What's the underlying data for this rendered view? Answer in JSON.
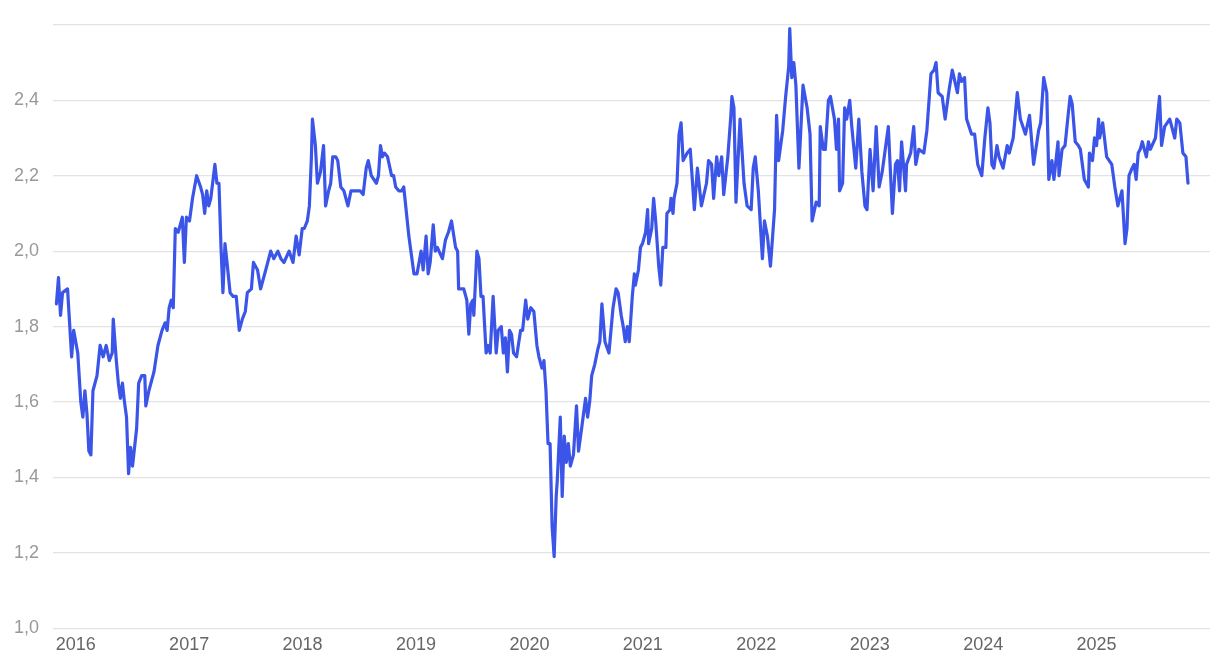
{
  "chart_data": {
    "type": "line",
    "color": "#3b55e8",
    "line_style": "solid",
    "grid": "y",
    "xlim": [
      2015.8,
      2026
    ],
    "xticks": [
      2016,
      2017,
      2018,
      2019,
      2020,
      2021,
      2022,
      2023,
      2024,
      2025
    ],
    "ylim": [
      1.0,
      2.6
    ],
    "yticks": [
      {
        "value": 1.0,
        "label": "1,0"
      },
      {
        "value": 1.2,
        "label": "1,2"
      },
      {
        "value": 1.4,
        "label": "1,4"
      },
      {
        "value": 1.6,
        "label": "1,6"
      },
      {
        "value": 1.8,
        "label": "1,8"
      },
      {
        "value": 2.0,
        "label": "2,0"
      },
      {
        "value": 2.2,
        "label": "2,2"
      },
      {
        "value": 2.4,
        "label": "2,4"
      },
      {
        "value": 2.6,
        "label": null
      }
    ],
    "x": [
      2015.83,
      2015.848,
      2015.866,
      2015.884,
      2015.928,
      2015.964,
      2015.982,
      2016.018,
      2016.045,
      2016.063,
      2016.081,
      2016.099,
      2016.116,
      2016.134,
      2016.152,
      2016.188,
      2016.215,
      2016.242,
      2016.269,
      2016.296,
      2016.322,
      2016.331,
      2016.358,
      2016.376,
      2016.394,
      2016.412,
      2016.43,
      2016.448,
      2016.466,
      2016.484,
      2016.501,
      2016.537,
      2016.555,
      2016.582,
      2016.609,
      2016.618,
      2016.645,
      2016.69,
      2016.725,
      2016.761,
      2016.788,
      2016.806,
      2016.824,
      2016.842,
      2016.86,
      2016.878,
      2016.904,
      2016.94,
      2016.958,
      2016.976,
      2017.003,
      2017.03,
      2017.066,
      2017.101,
      2017.119,
      2017.137,
      2017.155,
      2017.173,
      2017.191,
      2017.227,
      2017.245,
      2017.263,
      2017.281,
      2017.298,
      2017.316,
      2017.334,
      2017.361,
      2017.388,
      2017.415,
      2017.442,
      2017.469,
      2017.495,
      2017.513,
      2017.549,
      2017.567,
      2017.603,
      2017.63,
      2017.657,
      2017.684,
      2017.719,
      2017.746,
      2017.782,
      2017.809,
      2017.836,
      2017.881,
      2017.916,
      2017.943,
      2017.97,
      2017.997,
      2018.015,
      2018.042,
      2018.06,
      2018.078,
      2018.087,
      2018.113,
      2018.131,
      2018.158,
      2018.185,
      2018.203,
      2018.23,
      2018.248,
      2018.266,
      2018.293,
      2018.31,
      2018.337,
      2018.364,
      2018.4,
      2018.427,
      2018.472,
      2018.507,
      2018.534,
      2018.561,
      2018.579,
      2018.606,
      2018.651,
      2018.669,
      2018.687,
      2018.704,
      2018.722,
      2018.749,
      2018.785,
      2018.803,
      2018.821,
      2018.848,
      2018.875,
      2018.892,
      2018.937,
      2018.982,
      2019.009,
      2019.045,
      2019.063,
      2019.089,
      2019.107,
      2019.125,
      2019.152,
      2019.17,
      2019.188,
      2019.233,
      2019.26,
      2019.286,
      2019.313,
      2019.349,
      2019.367,
      2019.376,
      2019.421,
      2019.448,
      2019.466,
      2019.483,
      2019.501,
      2019.51,
      2019.537,
      2019.555,
      2019.573,
      2019.591,
      2019.618,
      2019.636,
      2019.654,
      2019.68,
      2019.707,
      2019.725,
      2019.752,
      2019.77,
      2019.788,
      2019.806,
      2019.824,
      2019.842,
      2019.86,
      2019.887,
      2019.922,
      2019.94,
      2019.967,
      2019.985,
      2020.012,
      2020.039,
      2020.066,
      2020.084,
      2020.11,
      2020.128,
      2020.146,
      2020.164,
      2020.182,
      2020.2,
      2020.218,
      2020.236,
      2020.245,
      2020.272,
      2020.289,
      2020.307,
      2020.325,
      2020.343,
      2020.361,
      2020.388,
      2020.415,
      2020.433,
      2020.46,
      2020.495,
      2020.513,
      2020.531,
      2020.549,
      2020.576,
      2020.603,
      2020.621,
      2020.639,
      2020.666,
      2020.701,
      2020.737,
      2020.764,
      2020.782,
      2020.809,
      2020.827,
      2020.845,
      2020.863,
      2020.88,
      2020.907,
      2020.925,
      2020.934,
      2020.961,
      2020.979,
      2020.997,
      2021.024,
      2021.042,
      2021.051,
      2021.078,
      2021.095,
      2021.113,
      2021.14,
      2021.158,
      2021.176,
      2021.203,
      2021.212,
      2021.239,
      2021.248,
      2021.266,
      2021.275,
      2021.301,
      2021.319,
      2021.337,
      2021.355,
      2021.391,
      2021.418,
      2021.454,
      2021.481,
      2021.516,
      2021.561,
      2021.579,
      2021.606,
      2021.624,
      2021.651,
      2021.669,
      2021.695,
      2021.713,
      2021.749,
      2021.776,
      2021.785,
      2021.803,
      2021.821,
      2021.857,
      2021.892,
      2021.919,
      2021.955,
      2021.973,
      2021.991,
      2022.018,
      2022.054,
      2022.072,
      2022.098,
      2022.125,
      2022.161,
      2022.179,
      2022.197,
      2022.233,
      2022.259,
      2022.286,
      2022.295,
      2022.313,
      2022.331,
      2022.349,
      2022.376,
      2022.412,
      2022.448,
      2022.474,
      2022.492,
      2022.528,
      2022.555,
      2022.564,
      2022.591,
      2022.609,
      2022.636,
      2022.654,
      2022.689,
      2022.707,
      2022.725,
      2022.734,
      2022.761,
      2022.779,
      2022.797,
      2022.824,
      2022.842,
      2022.877,
      2022.904,
      2022.931,
      2022.958,
      2022.976,
      2023.003,
      2023.03,
      2023.057,
      2023.083,
      2023.11,
      2023.164,
      2023.2,
      2023.227,
      2023.245,
      2023.263,
      2023.281,
      2023.316,
      2023.325,
      2023.361,
      2023.388,
      2023.406,
      2023.433,
      2023.477,
      2023.504,
      2023.54,
      2023.567,
      2023.585,
      2023.603,
      2023.639,
      2023.665,
      2023.701,
      2023.728,
      2023.773,
      2023.791,
      2023.809,
      2023.836,
      2023.854,
      2023.898,
      2023.925,
      2023.952,
      2023.988,
      2024.015,
      2024.042,
      2024.06,
      2024.077,
      2024.095,
      2024.122,
      2024.14,
      2024.176,
      2024.212,
      2024.23,
      2024.265,
      2024.301,
      2024.328,
      2024.373,
      2024.409,
      2024.445,
      2024.489,
      2024.507,
      2024.534,
      2024.561,
      2024.579,
      2024.606,
      2024.624,
      2024.66,
      2024.669,
      2024.696,
      2024.722,
      2024.749,
      2024.767,
      2024.785,
      2024.812,
      2024.839,
      2024.857,
      2024.892,
      2024.928,
      2024.937,
      2024.964,
      2024.982,
      2025.0,
      2025.018,
      2025.027,
      2025.054,
      2025.089,
      2025.134,
      2025.161,
      2025.188,
      2025.224,
      2025.251,
      2025.268,
      2025.286,
      2025.313,
      2025.331,
      2025.349,
      2025.367,
      2025.385,
      2025.403,
      2025.421,
      2025.439,
      2025.457,
      2025.474,
      2025.519,
      2025.555,
      2025.573,
      2025.6,
      2025.645,
      2025.689,
      2025.707,
      2025.734,
      2025.761,
      2025.788,
      2025.806
    ],
    "values": [
      1.86,
      1.93,
      1.83,
      1.89,
      1.9,
      1.72,
      1.79,
      1.73,
      1.6,
      1.56,
      1.63,
      1.57,
      1.47,
      1.46,
      1.63,
      1.67,
      1.75,
      1.72,
      1.75,
      1.71,
      1.73,
      1.82,
      1.71,
      1.65,
      1.61,
      1.65,
      1.6,
      1.56,
      1.41,
      1.48,
      1.43,
      1.53,
      1.65,
      1.67,
      1.67,
      1.59,
      1.63,
      1.68,
      1.75,
      1.79,
      1.81,
      1.79,
      1.85,
      1.87,
      1.85,
      2.06,
      2.05,
      2.09,
      1.97,
      2.09,
      2.08,
      2.14,
      2.2,
      2.17,
      2.15,
      2.1,
      2.16,
      2.12,
      2.14,
      2.23,
      2.18,
      2.18,
      2.01,
      1.89,
      2.02,
      1.97,
      1.89,
      1.88,
      1.88,
      1.79,
      1.82,
      1.84,
      1.89,
      1.9,
      1.97,
      1.95,
      1.9,
      1.93,
      1.96,
      2.0,
      1.98,
      2.0,
      1.98,
      1.97,
      2.0,
      1.97,
      2.04,
      1.99,
      2.06,
      2.06,
      2.08,
      2.12,
      2.25,
      2.35,
      2.28,
      2.18,
      2.21,
      2.28,
      2.12,
      2.16,
      2.18,
      2.25,
      2.25,
      2.24,
      2.17,
      2.16,
      2.12,
      2.16,
      2.16,
      2.16,
      2.15,
      2.22,
      2.24,
      2.2,
      2.18,
      2.2,
      2.28,
      2.25,
      2.26,
      2.25,
      2.2,
      2.2,
      2.17,
      2.16,
      2.16,
      2.17,
      2.04,
      1.94,
      1.94,
      2.0,
      1.95,
      2.04,
      1.94,
      1.97,
      2.07,
      2.0,
      2.01,
      1.98,
      2.03,
      2.05,
      2.08,
      2.01,
      2.0,
      1.9,
      1.9,
      1.87,
      1.78,
      1.86,
      1.87,
      1.83,
      2.0,
      1.98,
      1.88,
      1.88,
      1.73,
      1.75,
      1.73,
      1.88,
      1.73,
      1.79,
      1.8,
      1.73,
      1.77,
      1.68,
      1.79,
      1.78,
      1.73,
      1.72,
      1.79,
      1.79,
      1.87,
      1.82,
      1.85,
      1.84,
      1.75,
      1.72,
      1.69,
      1.71,
      1.63,
      1.49,
      1.49,
      1.27,
      1.19,
      1.35,
      1.39,
      1.56,
      1.35,
      1.51,
      1.44,
      1.49,
      1.43,
      1.46,
      1.59,
      1.47,
      1.53,
      1.61,
      1.56,
      1.6,
      1.67,
      1.7,
      1.74,
      1.76,
      1.86,
      1.76,
      1.73,
      1.85,
      1.9,
      1.89,
      1.83,
      1.8,
      1.76,
      1.8,
      1.76,
      1.88,
      1.94,
      1.91,
      1.95,
      2.01,
      2.02,
      2.05,
      2.11,
      2.02,
      2.06,
      2.14,
      2.08,
      1.96,
      1.91,
      2.01,
      2.01,
      2.1,
      2.11,
      2.14,
      2.1,
      2.14,
      2.18,
      2.31,
      2.34,
      2.24,
      2.26,
      2.27,
      2.11,
      2.22,
      2.12,
      2.18,
      2.24,
      2.23,
      2.14,
      2.25,
      2.2,
      2.25,
      2.15,
      2.25,
      2.36,
      2.41,
      2.38,
      2.13,
      2.35,
      2.18,
      2.12,
      2.11,
      2.22,
      2.25,
      2.16,
      1.98,
      2.08,
      2.04,
      1.96,
      2.11,
      2.36,
      2.24,
      2.32,
      2.41,
      2.49,
      2.59,
      2.46,
      2.5,
      2.44,
      2.22,
      2.44,
      2.38,
      2.31,
      2.08,
      2.13,
      2.12,
      2.33,
      2.27,
      2.27,
      2.4,
      2.41,
      2.35,
      2.27,
      2.35,
      2.16,
      2.18,
      2.38,
      2.35,
      2.4,
      2.33,
      2.22,
      2.35,
      2.21,
      2.12,
      2.11,
      2.27,
      2.16,
      2.33,
      2.17,
      2.21,
      2.33,
      2.1,
      2.23,
      2.24,
      2.16,
      2.29,
      2.16,
      2.23,
      2.26,
      2.33,
      2.23,
      2.27,
      2.26,
      2.32,
      2.47,
      2.48,
      2.5,
      2.42,
      2.41,
      2.35,
      2.43,
      2.48,
      2.42,
      2.47,
      2.45,
      2.46,
      2.35,
      2.31,
      2.31,
      2.23,
      2.2,
      2.3,
      2.38,
      2.34,
      2.23,
      2.22,
      2.28,
      2.25,
      2.22,
      2.28,
      2.26,
      2.3,
      2.42,
      2.35,
      2.31,
      2.36,
      2.23,
      2.32,
      2.34,
      2.46,
      2.42,
      2.19,
      2.24,
      2.19,
      2.29,
      2.2,
      2.27,
      2.28,
      2.36,
      2.41,
      2.39,
      2.29,
      2.28,
      2.27,
      2.19,
      2.17,
      2.26,
      2.24,
      2.3,
      2.28,
      2.35,
      2.3,
      2.34,
      2.25,
      2.23,
      2.17,
      2.12,
      2.16,
      2.02,
      2.06,
      2.2,
      2.22,
      2.23,
      2.19,
      2.26,
      2.27,
      2.29,
      2.27,
      2.25,
      2.29,
      2.27,
      2.3,
      2.41,
      2.28,
      2.33,
      2.35,
      2.3,
      2.35,
      2.34,
      2.26,
      2.25,
      2.18
    ]
  }
}
